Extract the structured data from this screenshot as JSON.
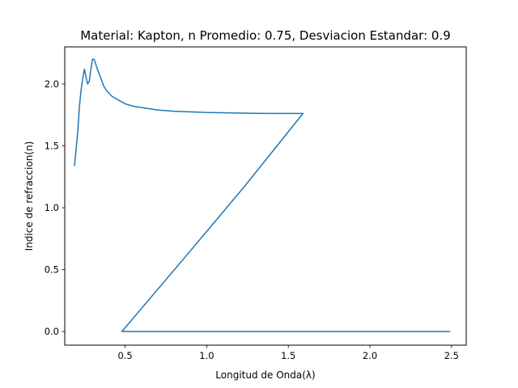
{
  "chart_data": {
    "type": "line",
    "title": "Material: Kapton, n Promedio: 0.75, Desviacion Estandar: 0.9",
    "xlabel": "Longitud de Onda(λ)",
    "ylabel": "Indice de refraccion(n)",
    "xlim": [
      0.13,
      2.59
    ],
    "ylim": [
      -0.11,
      2.3
    ],
    "xticks": [
      {
        "value": 0.5,
        "label": "0.5"
      },
      {
        "value": 1.0,
        "label": "1.0"
      },
      {
        "value": 1.5,
        "label": "1.5"
      },
      {
        "value": 2.0,
        "label": "2.0"
      },
      {
        "value": 2.5,
        "label": "2.5"
      }
    ],
    "yticks": [
      {
        "value": 0.0,
        "label": "0.0"
      },
      {
        "value": 0.5,
        "label": "0.5"
      },
      {
        "value": 1.0,
        "label": "1.0"
      },
      {
        "value": 1.5,
        "label": "1.5"
      },
      {
        "value": 2.0,
        "label": "2.0"
      }
    ],
    "grid": false,
    "series": [
      {
        "color": "#1f77b4",
        "x": [
          0.19,
          0.21,
          0.22,
          0.23,
          0.24,
          0.25,
          0.26,
          0.27,
          0.28,
          0.29,
          0.3,
          0.31,
          0.33,
          0.35,
          0.37,
          0.39,
          0.42,
          0.46,
          0.5,
          0.55,
          0.6,
          0.7,
          0.8,
          0.9,
          1.0,
          1.1,
          1.2,
          1.3,
          1.4,
          1.5,
          1.59,
          1.23,
          0.86,
          0.48,
          0.7,
          1.0,
          1.5,
          2.0,
          2.49
        ],
        "y": [
          1.34,
          1.62,
          1.82,
          1.95,
          2.04,
          2.12,
          2.06,
          2.0,
          2.02,
          2.12,
          2.2,
          2.2,
          2.12,
          2.05,
          1.98,
          1.94,
          1.9,
          1.87,
          1.84,
          1.82,
          1.81,
          1.79,
          1.78,
          1.775,
          1.77,
          1.768,
          1.765,
          1.763,
          1.762,
          1.762,
          1.762,
          1.17,
          0.59,
          0.0,
          0.0,
          0.0,
          0.0,
          0.0,
          0.0
        ]
      }
    ]
  }
}
